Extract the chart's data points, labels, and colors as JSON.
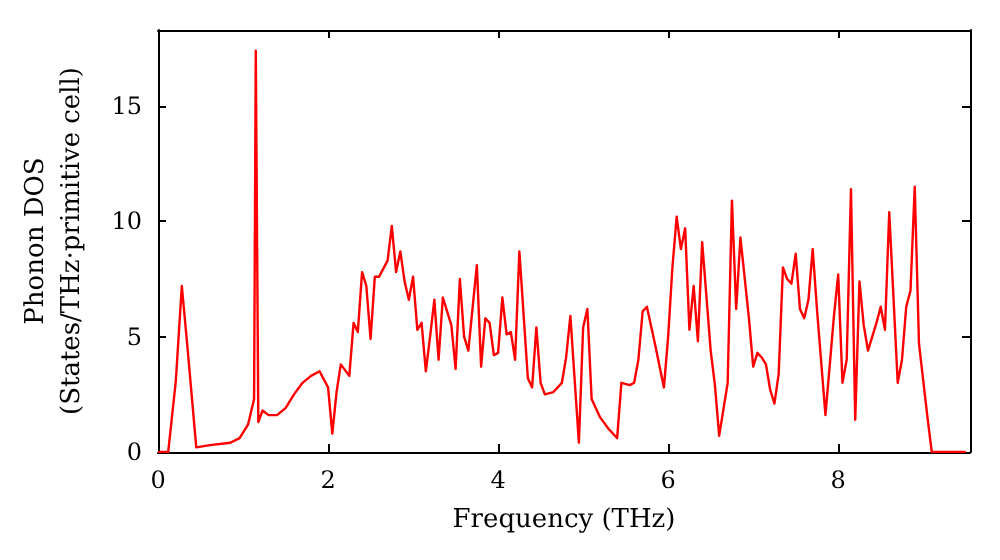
{
  "chart_data": {
    "type": "line",
    "xlabel": "Frequency (THz)",
    "ylabel": "Phonon DOS\n(States/THz·primitive cell)",
    "xlim": [
      0,
      9.55
    ],
    "ylim": [
      0,
      18.3
    ],
    "xticks": [
      0,
      2,
      4,
      6,
      8
    ],
    "yticks": [
      0,
      5,
      10,
      15
    ],
    "grid": false,
    "marker": "none",
    "line_style": "solid",
    "series": [
      {
        "color": "#ff0000",
        "x": [
          0,
          0.12,
          0.21,
          0.28,
          0.35,
          0.45,
          0.61,
          0.85,
          0.96,
          1.06,
          1.13,
          1.15,
          1.18,
          1.23,
          1.3,
          1.4,
          1.5,
          1.6,
          1.7,
          1.8,
          1.9,
          2.0,
          2.05,
          2.1,
          2.15,
          2.25,
          2.3,
          2.35,
          2.4,
          2.45,
          2.5,
          2.55,
          2.6,
          2.7,
          2.75,
          2.8,
          2.85,
          2.9,
          2.95,
          3.0,
          3.05,
          3.1,
          3.15,
          3.2,
          3.25,
          3.3,
          3.35,
          3.45,
          3.5,
          3.55,
          3.6,
          3.65,
          3.75,
          3.8,
          3.85,
          3.9,
          3.95,
          4.0,
          4.05,
          4.1,
          4.15,
          4.2,
          4.25,
          4.35,
          4.4,
          4.45,
          4.5,
          4.55,
          4.65,
          4.75,
          4.8,
          4.85,
          4.95,
          5.0,
          5.05,
          5.1,
          5.2,
          5.3,
          5.4,
          5.45,
          5.55,
          5.6,
          5.65,
          5.7,
          5.75,
          5.85,
          5.95,
          6.0,
          6.05,
          6.1,
          6.15,
          6.2,
          6.25,
          6.3,
          6.35,
          6.4,
          6.5,
          6.55,
          6.6,
          6.7,
          6.75,
          6.8,
          6.85,
          6.95,
          7.0,
          7.05,
          7.1,
          7.15,
          7.2,
          7.25,
          7.3,
          7.35,
          7.4,
          7.45,
          7.5,
          7.55,
          7.6,
          7.65,
          7.7,
          7.75,
          7.85,
          7.95,
          8.0,
          8.05,
          8.1,
          8.15,
          8.2,
          8.25,
          8.3,
          8.35,
          8.45,
          8.5,
          8.55,
          8.6,
          8.7,
          8.75,
          8.8,
          8.85,
          8.9,
          8.95,
          9.05,
          9.1,
          9.5
        ],
        "values": [
          0,
          0,
          3.1,
          7.2,
          4.4,
          0.2,
          0.3,
          0.4,
          0.6,
          1.2,
          2.3,
          17.4,
          1.3,
          1.8,
          1.6,
          1.6,
          1.9,
          2.5,
          3.0,
          3.3,
          3.5,
          2.8,
          0.8,
          2.6,
          3.8,
          3.3,
          5.6,
          5.2,
          7.8,
          7.2,
          4.9,
          7.6,
          7.6,
          8.3,
          9.8,
          7.8,
          8.7,
          7.4,
          6.6,
          7.6,
          5.3,
          5.6,
          3.5,
          5.0,
          6.6,
          4.0,
          6.7,
          5.5,
          3.6,
          7.5,
          5.0,
          4.4,
          8.1,
          3.7,
          5.8,
          5.6,
          4.2,
          4.3,
          6.7,
          5.1,
          5.2,
          4.0,
          8.7,
          3.2,
          2.8,
          5.4,
          3.0,
          2.5,
          2.6,
          3.0,
          4.1,
          5.9,
          0.4,
          5.4,
          6.2,
          2.3,
          1.5,
          1.0,
          0.6,
          3.0,
          2.9,
          3.0,
          4.0,
          6.1,
          6.3,
          4.6,
          2.8,
          5.0,
          8.0,
          10.2,
          8.8,
          9.7,
          5.3,
          7.2,
          4.8,
          9.1,
          4.4,
          2.9,
          0.7,
          3.0,
          10.9,
          6.2,
          9.3,
          5.8,
          3.7,
          4.3,
          4.1,
          3.8,
          2.7,
          2.1,
          3.4,
          8.0,
          7.5,
          7.3,
          8.6,
          6.2,
          5.8,
          6.6,
          8.8,
          6.2,
          1.6,
          5.9,
          7.7,
          3.0,
          4.0,
          11.4,
          1.4,
          7.4,
          5.5,
          4.4,
          5.6,
          6.3,
          5.3,
          10.4,
          3.0,
          4.0,
          6.3,
          7.0,
          11.5,
          4.7,
          1.5,
          0,
          0
        ]
      }
    ]
  }
}
